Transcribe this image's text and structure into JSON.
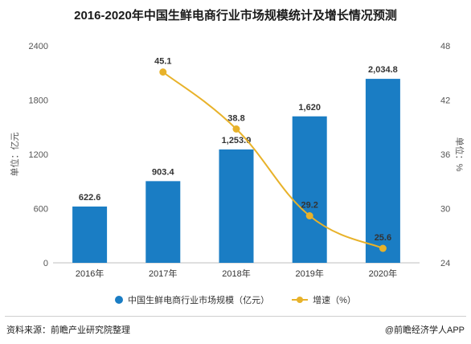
{
  "chart_data": {
    "type": "bar",
    "title": "2016-2020年中国生鲜电商行业市场规模统计及增长情况预测",
    "categories": [
      "2016年",
      "2017年",
      "2018年",
      "2019年",
      "2020年"
    ],
    "series": [
      {
        "name": "中国生鲜电商行业市场规模（亿元）",
        "type": "bar",
        "axis": "left",
        "color": "#1a7dc4",
        "values": [
          622.6,
          903.4,
          1253.9,
          1620,
          2034.8
        ],
        "labels": [
          "622.6",
          "903.4",
          "1,253.9",
          "1,620",
          "2,034.8"
        ]
      },
      {
        "name": "增速（%）",
        "type": "line",
        "axis": "right",
        "color": "#e8b22a",
        "values": [
          null,
          45.1,
          38.8,
          29.2,
          25.6
        ],
        "labels": [
          "",
          "45.1",
          "38.8",
          "29.2",
          "25.6"
        ]
      }
    ],
    "ylabel": "单位：亿元",
    "y2label": "单位：%",
    "ylim": [
      0,
      2400
    ],
    "yticks": [
      "0",
      "600",
      "1200",
      "1800",
      "2400"
    ],
    "y2lim": [
      24,
      48
    ],
    "y2ticks": [
      "24",
      "30",
      "36",
      "42",
      "48"
    ],
    "grid": false,
    "legend_position": "bottom"
  },
  "footer": {
    "source": "资料来源：前瞻产业研究院整理",
    "brand": "@前瞻经济学人APP"
  }
}
